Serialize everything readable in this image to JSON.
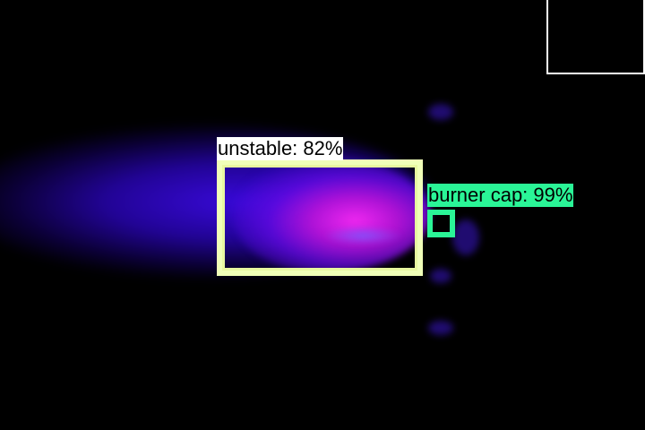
{
  "detections": [
    {
      "label": "unstable: 82%",
      "color": "#f0ffb8"
    },
    {
      "label": "burner cap: 99%",
      "color": "#2af597"
    }
  ],
  "colors": {
    "background": "#000000",
    "flame_outer": "#3c0ae6",
    "flame_core": "#f028f0",
    "corner_frame": "#ffffff"
  }
}
